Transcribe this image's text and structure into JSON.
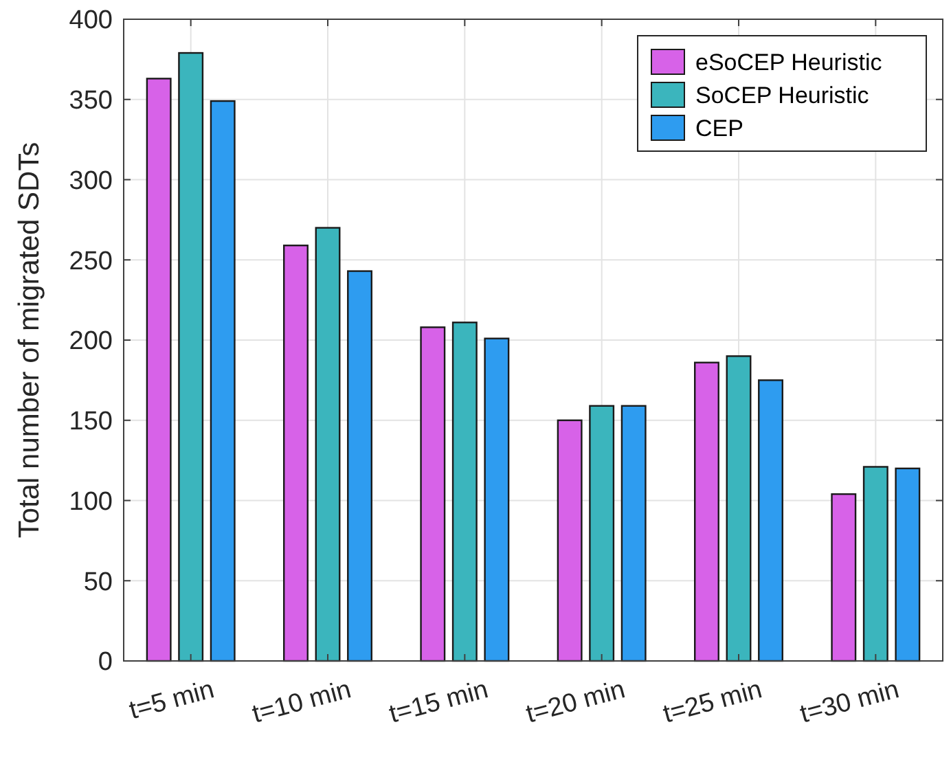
{
  "chart_data": {
    "type": "bar",
    "ylabel": "Total number of migrated SDTs",
    "categories": [
      "t=5 min",
      "t=10 min",
      "t=15 min",
      "t=20 min",
      "t=25 min",
      "t=30 min"
    ],
    "series": [
      {
        "name": "eSoCEP Heuristic",
        "color": "#d762e8",
        "values": [
          363,
          259,
          208,
          150,
          186,
          104
        ]
      },
      {
        "name": "SoCEP Heuristic",
        "color": "#3bb5bd",
        "values": [
          379,
          270,
          211,
          159,
          190,
          121
        ]
      },
      {
        "name": "CEP",
        "color": "#2e9cf0",
        "values": [
          349,
          243,
          201,
          159,
          175,
          120
        ]
      }
    ],
    "ylim": [
      0,
      400
    ],
    "yticks": [
      0,
      50,
      100,
      150,
      200,
      250,
      300,
      350,
      400
    ],
    "grid": true,
    "legend": "top right"
  }
}
